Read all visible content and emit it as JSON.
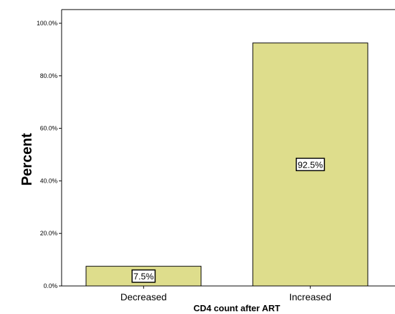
{
  "chart_data": {
    "type": "bar",
    "categories": [
      "Decreased",
      "Increased"
    ],
    "values": [
      7.5,
      92.5
    ],
    "data_labels": [
      "7.5%",
      "92.5%"
    ],
    "title": "",
    "xlabel": "CD4 count after ART",
    "ylabel": "Percent",
    "ylim": [
      0,
      100
    ],
    "yticks": [
      0,
      20,
      40,
      60,
      80,
      100
    ],
    "ytick_labels": [
      "0.0%",
      "20.0%",
      "40.0%",
      "60.0%",
      "80.0%",
      "100.0%"
    ],
    "grid": false,
    "legend": "none",
    "bar_color": "#dedd8c",
    "bar_edge_color": "#000000"
  }
}
